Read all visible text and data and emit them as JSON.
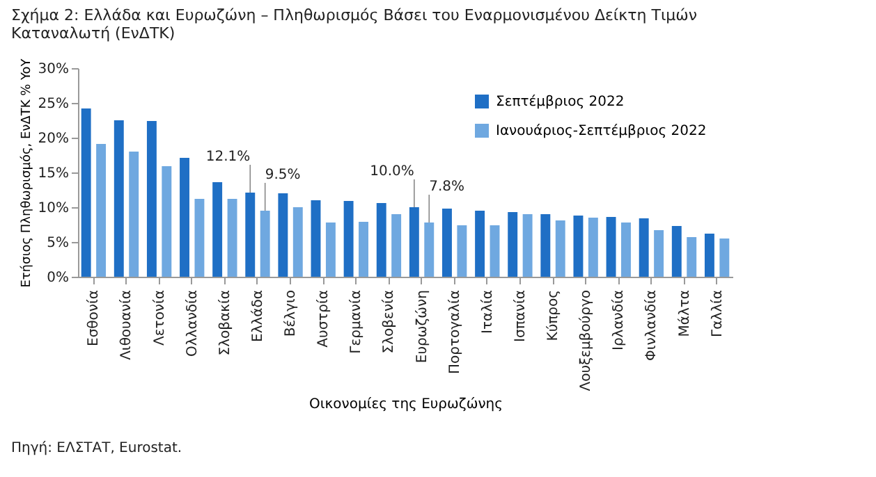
{
  "chart_data": {
    "type": "bar",
    "title": "Σχήμα 2: Ελλάδα και Ευρωζώνη – Πληθωρισμός Βάσει του Εναρμονισμένου Δείκτη Τιμών Καταναλωτή (ΕνΔΤΚ)",
    "xlabel": "Οικονομίες της Ευρωζώνης",
    "ylabel": "Ετήσιος Πληθωρισμός, ΕνΔΤΚ % YoY",
    "annotations": [
      "Πηγή: ΕΛΣΤΑΤ, Eurostat."
    ],
    "categories": [
      "Εσθονία",
      "Λιθουανία",
      "Λετονία",
      "Ολλανδία",
      "Σλοβακία",
      "Ελλάδα",
      "Βέλγιο",
      "Αυστρία",
      "Γερμανία",
      "Σλοβενία",
      "Ευρωζώνη",
      "Πορτογαλία",
      "Ιταλία",
      "Ισπανία",
      "Κύπρος",
      "Λουξεμβούργο",
      "Ιρλανδία",
      "Φινλανδία",
      "Μάλτα",
      "Γαλλία"
    ],
    "series": [
      {
        "name": "Σεπτέμβριος 2022",
        "color": "#1f6fc5",
        "values": [
          24.2,
          22.5,
          22.4,
          17.1,
          13.6,
          12.1,
          12.0,
          11.0,
          10.9,
          10.6,
          10.0,
          9.8,
          9.5,
          9.3,
          9.0,
          8.8,
          8.6,
          8.4,
          7.3,
          6.2
        ],
        "value_labels": [
          null,
          null,
          null,
          null,
          null,
          "12.1%",
          null,
          null,
          null,
          null,
          "10.0%",
          null,
          null,
          null,
          null,
          null,
          null,
          null,
          null,
          null
        ]
      },
      {
        "name": "Ιανουάριος-Σεπτέμβριος 2022",
        "color": "#6fa8e0",
        "values": [
          19.1,
          18.0,
          15.9,
          11.2,
          11.2,
          9.5,
          10.0,
          7.8,
          7.9,
          9.0,
          7.8,
          7.4,
          7.4,
          9.0,
          8.1,
          8.5,
          7.8,
          6.7,
          5.7,
          5.5
        ],
        "value_labels": [
          null,
          null,
          null,
          null,
          null,
          "9.5%",
          null,
          null,
          null,
          null,
          "7.8%",
          null,
          null,
          null,
          null,
          null,
          null,
          null,
          null,
          null
        ]
      }
    ],
    "ylim": [
      0,
      30
    ],
    "yticks": [
      {
        "value": 0,
        "label": "0%"
      },
      {
        "value": 5,
        "label": "5%"
      },
      {
        "value": 10,
        "label": "10%"
      },
      {
        "value": 15,
        "label": "15%"
      },
      {
        "value": 20,
        "label": "20%"
      },
      {
        "value": 25,
        "label": "25%"
      },
      {
        "value": 30,
        "label": "30%"
      }
    ],
    "grid": false,
    "legend": "top right"
  }
}
